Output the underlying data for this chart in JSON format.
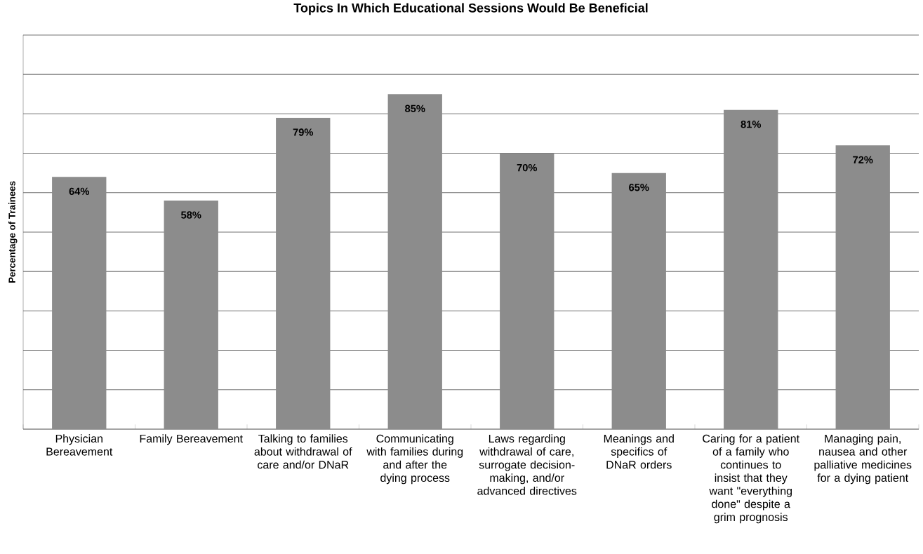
{
  "chart_data": {
    "type": "bar",
    "title": "Topics In Which Educational Sessions Would Be Beneficial",
    "ylabel": "Percentage of Trainees",
    "categories": [
      "Physician Bereavement",
      "Family Bereavement",
      "Talking to families about withdrawal of care and/or DNaR",
      "Communicating with families during and after the dying process",
      "Laws regarding withdrawal of care, surrogate decision-making, and/or advanced directives",
      "Meanings and specifics of DNaR orders",
      "Caring for a patient of a family who continues to insist that they want \"everything done\" despite a grim prognosis",
      "Managing pain, nausea and other palliative medicines for a dying patient"
    ],
    "values": [
      64,
      58,
      79,
      85,
      70,
      65,
      81,
      72
    ],
    "value_labels": [
      "64%",
      "58%",
      "79%",
      "85%",
      "70%",
      "65%",
      "81%",
      "72%"
    ],
    "color": "#8c8c8c",
    "ylim": [
      0,
      100
    ],
    "yticks": [
      {
        "value": 0,
        "label": null
      },
      {
        "value": 10,
        "label": null
      },
      {
        "value": 20,
        "label": null
      },
      {
        "value": 30,
        "label": null
      },
      {
        "value": 40,
        "label": null
      },
      {
        "value": 50,
        "label": null
      },
      {
        "value": 60,
        "label": null
      },
      {
        "value": 70,
        "label": null
      },
      {
        "value": 80,
        "label": null
      },
      {
        "value": 90,
        "label": null
      },
      {
        "value": 100,
        "label": null
      }
    ],
    "grid": "y",
    "tick_labels": "x"
  }
}
